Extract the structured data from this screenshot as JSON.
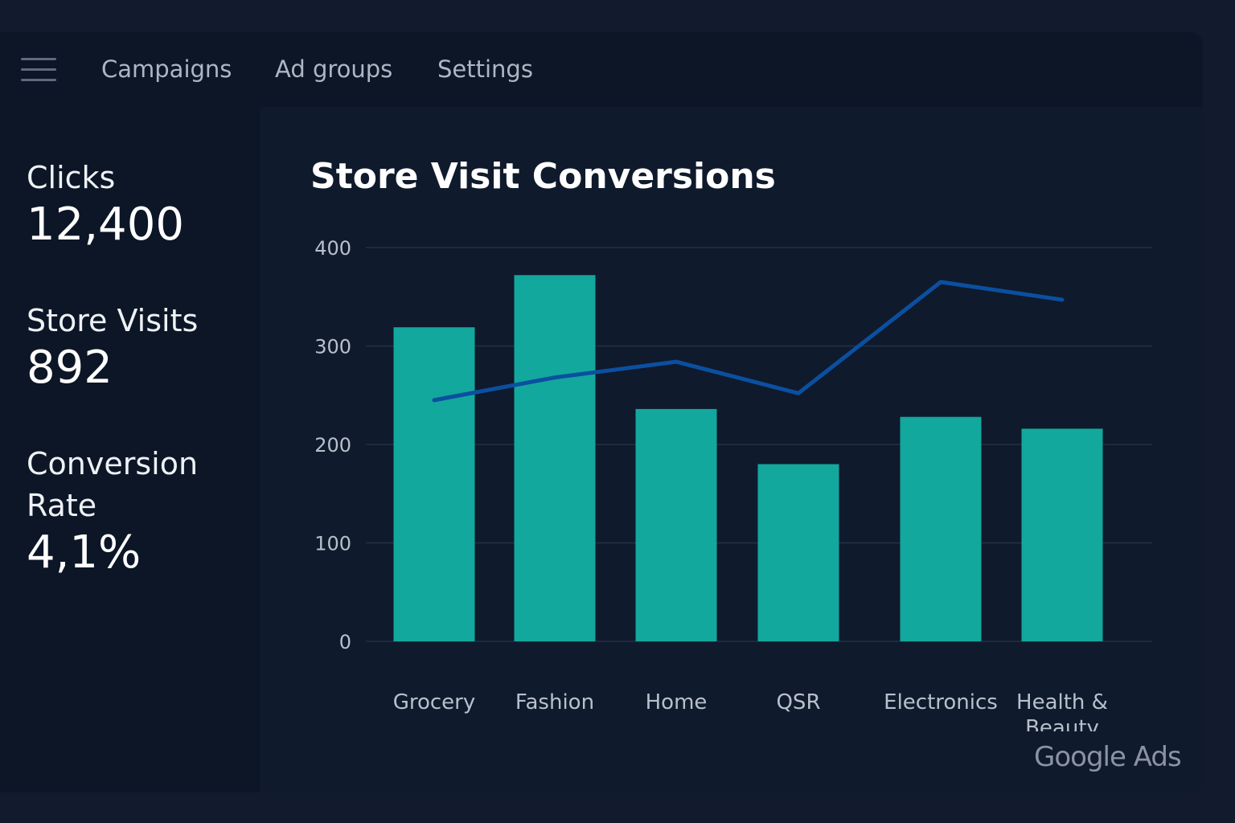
{
  "nav": {
    "menu_icon": "hamburger-menu-icon",
    "tabs": [
      {
        "label": "Campaigns"
      },
      {
        "label": "Ad groups"
      },
      {
        "label": "Settings"
      }
    ]
  },
  "metrics": [
    {
      "label": "Clicks",
      "value": "12,400"
    },
    {
      "label": "Store Visits",
      "value": "892"
    },
    {
      "label": "Conversion Rate",
      "value": "4,1%"
    }
  ],
  "logo_text": "Google Ads",
  "colors": {
    "bar": "#12a89d",
    "line": "#0b4fa0",
    "grid": "#223047",
    "tick_text": "#b8c0cc"
  },
  "chart_data": {
    "type": "bar",
    "title": "Store Visit Conversions",
    "xlabel": "",
    "ylabel": "",
    "ylim": [
      0,
      400
    ],
    "yticks": [
      0,
      100,
      200,
      300,
      400
    ],
    "grid": true,
    "categories": [
      "Grocery",
      "Fashion",
      "Home",
      "QSR",
      "Electronics",
      "Health & Beauty"
    ],
    "series": [
      {
        "type": "bar",
        "values": [
          319,
          372,
          236,
          180,
          228,
          216
        ]
      },
      {
        "type": "line",
        "values": [
          245,
          268,
          284,
          252,
          365,
          347
        ]
      }
    ]
  }
}
